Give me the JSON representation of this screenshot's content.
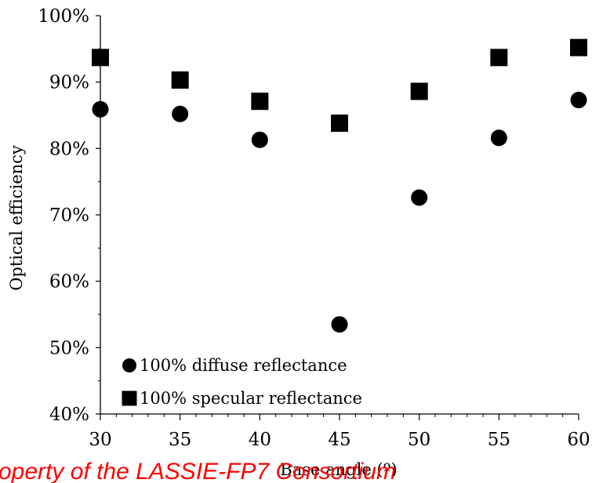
{
  "chart_data": {
    "type": "scatter",
    "xlabel": "Base angle (º)",
    "ylabel": "Optical efficiency",
    "xlim": [
      30,
      60
    ],
    "ylim": [
      0.4,
      1.0
    ],
    "x_ticks": [
      "30",
      "35",
      "40",
      "45",
      "50",
      "55",
      "60"
    ],
    "y_ticks": [
      "40%",
      "50%",
      "60%",
      "70%",
      "80%",
      "90%",
      "100%"
    ],
    "grid": false,
    "legend_position": "bottom-left",
    "series": [
      {
        "name": "100% diffuse reflectance",
        "marker": "circle",
        "color": "#000000",
        "x": [
          30,
          35,
          40,
          45,
          50,
          55,
          60
        ],
        "y": [
          0.859,
          0.852,
          0.813,
          0.535,
          0.726,
          0.816,
          0.873
        ]
      },
      {
        "name": "100% specular reflectance",
        "marker": "square",
        "color": "#000000",
        "x": [
          30,
          35,
          40,
          45,
          50,
          55,
          60
        ],
        "y": [
          0.937,
          0.903,
          0.871,
          0.838,
          0.886,
          0.937,
          0.952
        ]
      }
    ]
  },
  "watermark": "operty of the LASSIE-FP7 Consortium"
}
